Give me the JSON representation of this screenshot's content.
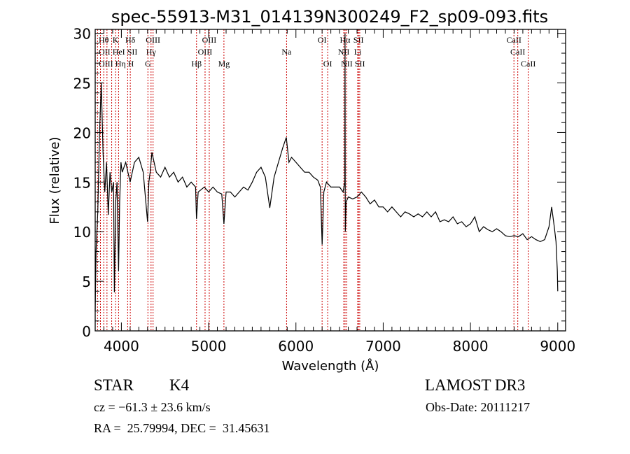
{
  "chart_data": {
    "type": "line",
    "title": "spec-55913-M31_014139N300249_F2_sp09-093.fits",
    "xlabel": "Wavelength (Å)",
    "ylabel": "Flux (relative)",
    "xlim": [
      3700,
      9090
    ],
    "ylim": [
      0,
      30.4
    ],
    "grid": false,
    "xticks": [
      4000,
      5000,
      6000,
      7000,
      8000,
      9000
    ],
    "yticks": [
      0,
      5,
      10,
      15,
      20,
      25,
      30
    ],
    "series": [
      {
        "name": "spectrum",
        "color": "#000000",
        "x": [
          3700,
          3710,
          3730,
          3750,
          3770,
          3790,
          3810,
          3830,
          3850,
          3870,
          3890,
          3910,
          3920,
          3935,
          3950,
          3968,
          3980,
          3995,
          4010,
          4050,
          4100,
          4150,
          4200,
          4250,
          4300,
          4315,
          4330,
          4350,
          4400,
          4450,
          4500,
          4550,
          4600,
          4650,
          4700,
          4750,
          4800,
          4850,
          4861,
          4880,
          4950,
          5000,
          5050,
          5100,
          5150,
          5175,
          5200,
          5250,
          5300,
          5350,
          5400,
          5450,
          5500,
          5550,
          5600,
          5650,
          5700,
          5750,
          5800,
          5850,
          5890,
          5920,
          5950,
          6000,
          6050,
          6100,
          6150,
          6200,
          6250,
          6280,
          6300,
          6320,
          6350,
          6400,
          6450,
          6500,
          6540,
          6560,
          6563,
          6566,
          6575,
          6600,
          6650,
          6700,
          6750,
          6800,
          6850,
          6900,
          6950,
          7000,
          7050,
          7100,
          7150,
          7200,
          7250,
          7300,
          7350,
          7400,
          7450,
          7500,
          7550,
          7600,
          7650,
          7700,
          7750,
          7800,
          7850,
          7900,
          7950,
          8000,
          8050,
          8100,
          8150,
          8200,
          8250,
          8300,
          8350,
          8400,
          8450,
          8500,
          8550,
          8600,
          8650,
          8700,
          8750,
          8800,
          8850,
          8900,
          8930,
          8960,
          8980,
          8995,
          9000
        ],
        "y": [
          2,
          8,
          12,
          20,
          25,
          18,
          14,
          17,
          11.7,
          16,
          14,
          15,
          3.9,
          13,
          15,
          6,
          13,
          17,
          16,
          17,
          15,
          17,
          17.5,
          16,
          11,
          15,
          16,
          18,
          16,
          15.5,
          16.5,
          15.5,
          16,
          15,
          15.5,
          14.5,
          15,
          14.5,
          11.3,
          14,
          14.5,
          14,
          14.5,
          14,
          13.8,
          10.8,
          14,
          14,
          13.5,
          14,
          14.5,
          14.2,
          15,
          16,
          16.5,
          15.5,
          12.4,
          15.5,
          17,
          18.5,
          19.5,
          17,
          17.5,
          17,
          16.5,
          16,
          16,
          15.5,
          15.2,
          14.5,
          8.7,
          14,
          15,
          14.5,
          14.5,
          14.5,
          14,
          15,
          30,
          10,
          13,
          13.5,
          13.3,
          13.5,
          14,
          13.5,
          12.8,
          13.2,
          12.5,
          12.5,
          12,
          12.5,
          12,
          11.5,
          12,
          11.8,
          11.5,
          11.8,
          11.5,
          12,
          11.5,
          12,
          11,
          11.2,
          11,
          11.5,
          10.8,
          11,
          10.5,
          10.8,
          11.5,
          10,
          10.5,
          10.2,
          10,
          10.3,
          10,
          9.6,
          9.5,
          9.6,
          9.5,
          9.8,
          9.2,
          9.5,
          9.2,
          9,
          9.2,
          10.5,
          12.5,
          10.5,
          9,
          6,
          4
        ]
      }
    ],
    "line_markers": [
      {
        "label": "Hθ",
        "wavelength": 3798,
        "row": 1
      },
      {
        "label": "K",
        "wavelength": 3934,
        "row": 1
      },
      {
        "label": "Hδ",
        "wavelength": 4102,
        "row": 1
      },
      {
        "label": "OIII",
        "wavelength": 4363,
        "row": 1
      },
      {
        "label": "OIII",
        "wavelength": 5007,
        "row": 1
      },
      {
        "label": "OI",
        "wavelength": 6300,
        "row": 1
      },
      {
        "label": "Hα",
        "wavelength": 6563,
        "row": 1
      },
      {
        "label": "SII",
        "wavelength": 6717,
        "row": 1
      },
      {
        "label": "CaII",
        "wavelength": 8498,
        "row": 1
      },
      {
        "label": "OII",
        "wavelength": 3727,
        "row": 2
      },
      {
        "label": "HeI",
        "wavelength": 3889,
        "row": 2
      },
      {
        "label": "SII",
        "wavelength": 4072,
        "row": 2
      },
      {
        "label": "Hγ",
        "wavelength": 4340,
        "row": 2
      },
      {
        "label": "OIII",
        "wavelength": 4959,
        "row": 2
      },
      {
        "label": "Na",
        "wavelength": 5893,
        "row": 2
      },
      {
        "label": "NII",
        "wavelength": 6548,
        "row": 2
      },
      {
        "label": "Li",
        "wavelength": 6708,
        "row": 2
      },
      {
        "label": "CaII",
        "wavelength": 8542,
        "row": 2
      },
      {
        "label": "OIII",
        "wavelength": 3760,
        "row": 3
      },
      {
        "label": "Hη",
        "wavelength": 3835,
        "row": 3
      },
      {
        "label": "H",
        "wavelength": 3968,
        "row": 3
      },
      {
        "label": "G",
        "wavelength": 4304,
        "row": 3
      },
      {
        "label": "Hβ",
        "wavelength": 4861,
        "row": 3
      },
      {
        "label": "Mg",
        "wavelength": 5175,
        "row": 3
      },
      {
        "label": "OI",
        "wavelength": 6364,
        "row": 3
      },
      {
        "label": "NII",
        "wavelength": 6583,
        "row": 3
      },
      {
        "label": "SII",
        "wavelength": 6731,
        "row": 3
      },
      {
        "label": "CaII",
        "wavelength": 8662,
        "row": 3
      }
    ],
    "marker_color": "#cc0000"
  },
  "info": {
    "class": "STAR",
    "subclass": "K4",
    "survey": "LAMOST DR3",
    "cz": "cz = −61.3 ± 23.6 km/s",
    "obs_date": "Obs-Date: 20111217",
    "coords": "RA =  25.79994, DEC =  31.45631"
  }
}
